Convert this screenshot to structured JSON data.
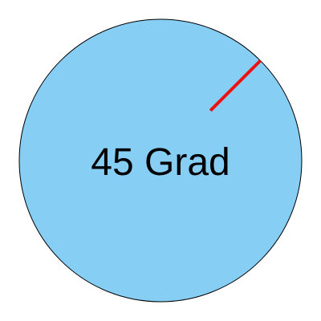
{
  "diagram": {
    "label": "45 Grad",
    "angle_degrees": 45,
    "colors": {
      "circle_fill": "#87cef5",
      "circle_stroke": "#000000",
      "line": "#ee1111",
      "text": "#000000"
    }
  }
}
